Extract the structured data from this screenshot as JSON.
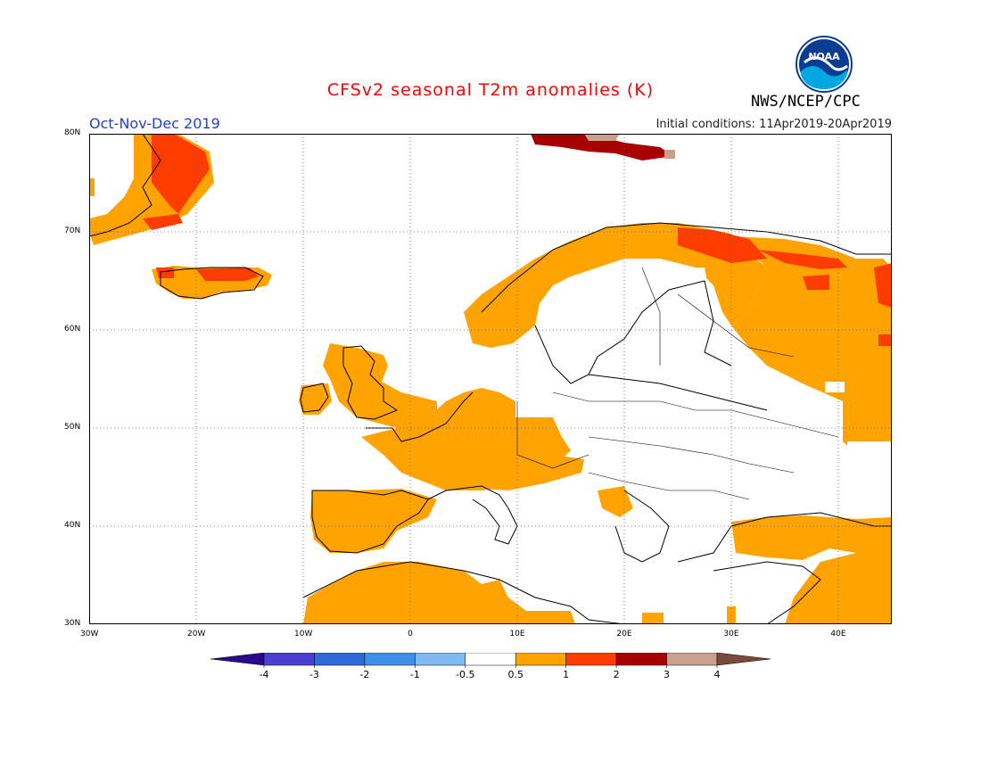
{
  "header": {
    "title": "CFSv2 seasonal T2m anomalies (K)",
    "period": "Oct-Nov-Dec 2019",
    "initial_conditions": "Initial conditions: 11Apr2019-20Apr2019",
    "agency": "NWS/NCEP/CPC",
    "logo_text": "NOAA"
  },
  "map": {
    "lon_range": [
      -30,
      45
    ],
    "lat_range": [
      30,
      80
    ],
    "lat_labels": [
      "80N",
      "70N",
      "60N",
      "50N",
      "40N",
      "30N"
    ],
    "lon_labels": [
      "30W",
      "20W",
      "10W",
      "0",
      "10E",
      "20E",
      "30E",
      "40E"
    ],
    "grid": true
  },
  "legend": {
    "labels": [
      "-4",
      "-3",
      "-2",
      "-1",
      "-0.5",
      "0.5",
      "1",
      "2",
      "3",
      "4"
    ],
    "colors": [
      "#2a0a8c",
      "#4b3fcf",
      "#2e6ad9",
      "#3f90ea",
      "#7fbaf2",
      "#ffffff",
      "#ffa300",
      "#ff3c00",
      "#a80000",
      "#c8a08f",
      "#7a4a3a"
    ]
  }
}
